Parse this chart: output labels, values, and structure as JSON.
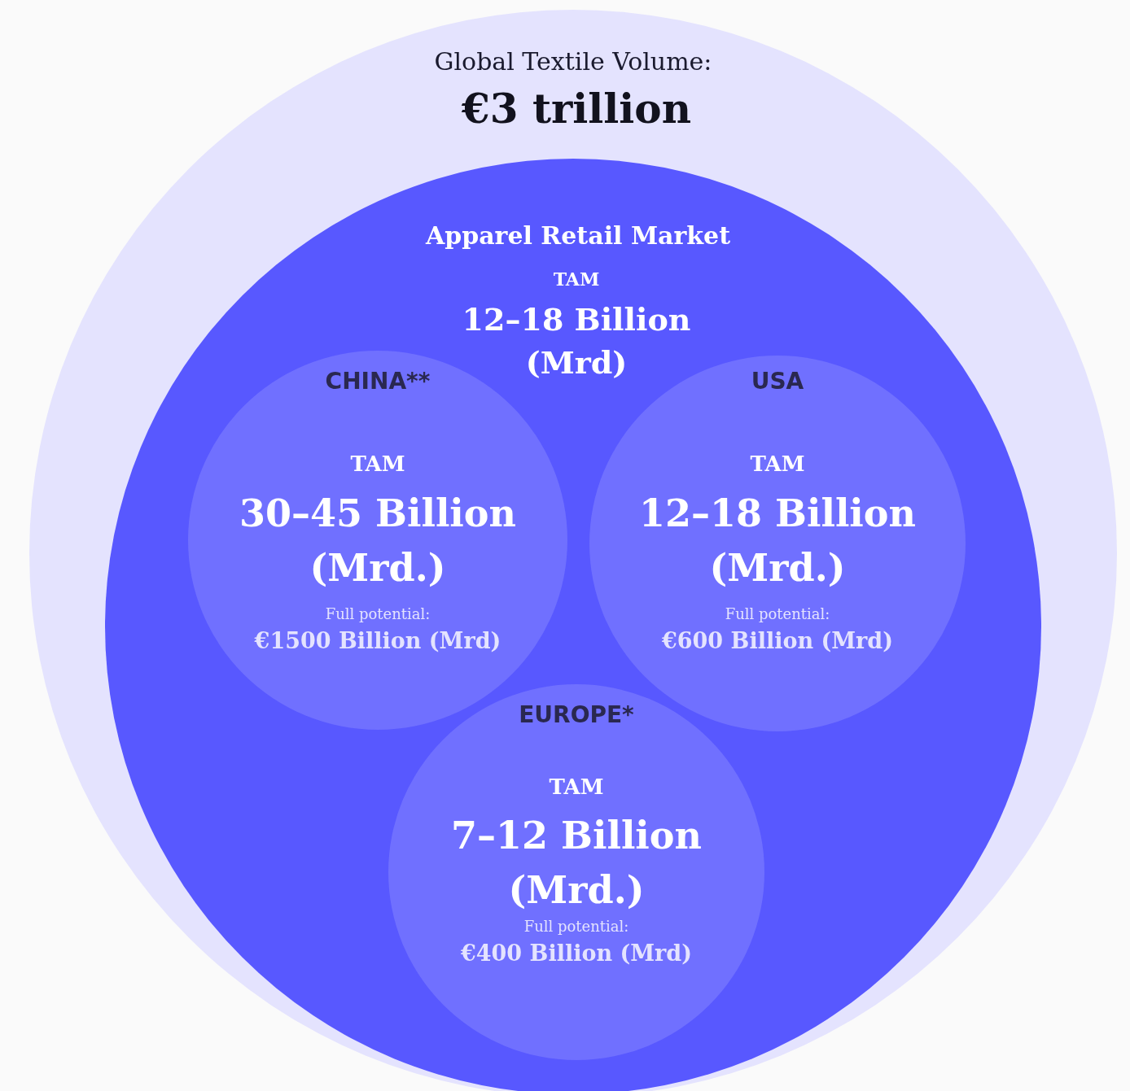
{
  "chart_data": {
    "type": "other",
    "title": "Global Textile Volume:",
    "subtitle": "€3 trillion",
    "categories": [
      null,
      "Apparel Retail Market",
      "CHINA**",
      "USA",
      "EUROPE*"
    ],
    "colors": [
      "#e4e3fe",
      "#5858ff",
      "#7070ff",
      "#7070ff",
      "#7070ff"
    ],
    "values": [
      null,
      null,
      1500,
      600,
      400
    ],
    "value_labels": [
      null,
      null,
      "€1500 Billion (Mrd)",
      "€600 Billion (Mrd)",
      "€400 Billion (Mrd)"
    ],
    "annotations": [
      "TAM",
      "12–18 Billion (Mrd)",
      "TAM",
      "30–45 Billion (Mrd.)",
      "Full potential:",
      "TAM",
      "12–18 Billion (Mrd.)",
      "Full potential:",
      "TAM",
      "7–12 Billion (Mrd.)",
      "Full potential:"
    ]
  }
}
